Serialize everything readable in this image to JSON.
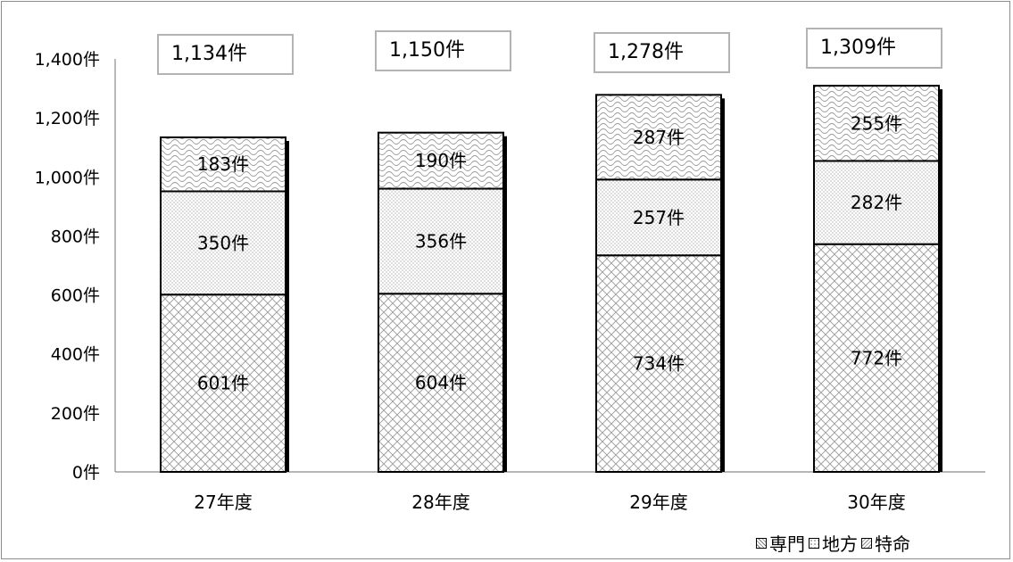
{
  "chart_data": {
    "type": "bar",
    "stacked": true,
    "categories": [
      "27年度",
      "28年度",
      "29年度",
      "30年度"
    ],
    "series": [
      {
        "name": "専門",
        "values": [
          601,
          604,
          734,
          772
        ],
        "labels": [
          "601件",
          "604件",
          "734件",
          "772件"
        ]
      },
      {
        "name": "地方",
        "values": [
          350,
          356,
          257,
          282
        ],
        "labels": [
          "350件",
          "356件",
          "257件",
          "282件"
        ]
      },
      {
        "name": "特命",
        "values": [
          183,
          190,
          287,
          255
        ],
        "labels": [
          "183件",
          "190件",
          "287件",
          "255件"
        ]
      }
    ],
    "totals": [
      "1,134件",
      "1,150件",
      "1,278件",
      "1,309件"
    ],
    "ylim": [
      0,
      1400
    ],
    "yticks": [
      0,
      200,
      400,
      600,
      800,
      1000,
      1200,
      1400
    ],
    "ytick_labels": [
      "0件",
      "200件",
      "400件",
      "600件",
      "800件",
      "1,000件",
      "1,200件",
      "1,400件"
    ],
    "xlabel": "",
    "ylabel": "",
    "grid": false,
    "legend_position": "bottom-right"
  }
}
